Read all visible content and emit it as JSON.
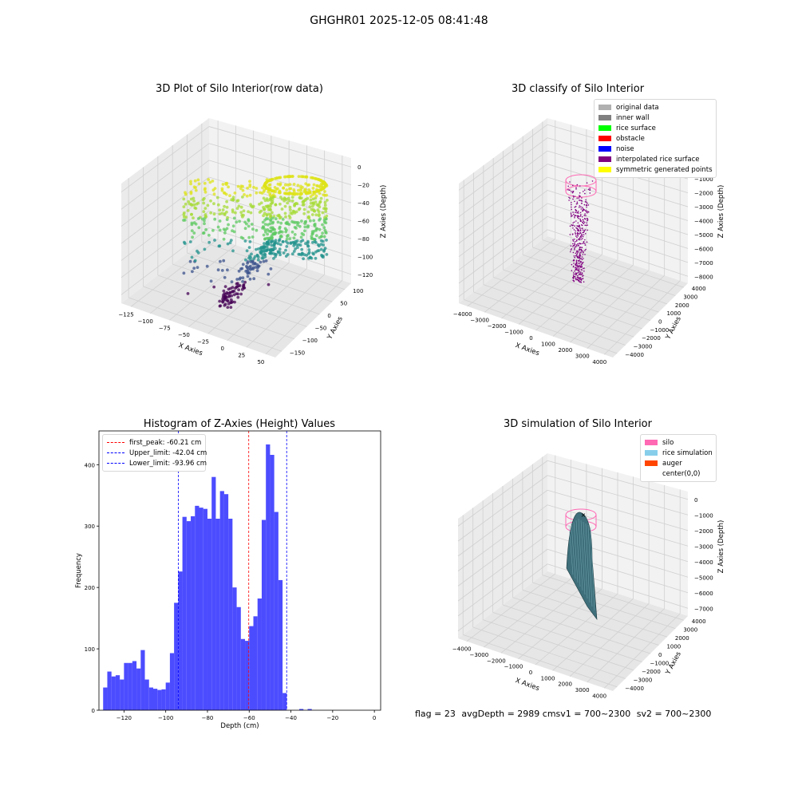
{
  "suptitle": "GHGHR01 2025-12-05 08:41:48",
  "colors": {
    "original": "#b0b0b0",
    "inner_wall": "#808080",
    "rice_surface": "#00ff00",
    "obstacle": "#ff0000",
    "noise": "#0000ff",
    "interpolated": "#800080",
    "symmetric": "#ffff00",
    "silo": "#ff69b4",
    "rice_sim": "#87ceeb",
    "auger": "#ff4500",
    "hist_bar": "#4c4cff"
  },
  "panel1": {
    "title": "3D Plot of Silo Interior(row data)",
    "xlabel": "X Axies",
    "ylabel": "Y Axies",
    "zlabel": "Z Axies (Depth)",
    "xticks": [
      "−125",
      "−100",
      "−75",
      "−50",
      "−25",
      "0",
      "25",
      "50"
    ],
    "yticks": [
      "100",
      "50",
      "0",
      "−50",
      "−100",
      "−150"
    ],
    "zticks": [
      "0",
      "−20",
      "−40",
      "−60",
      "−80",
      "−100",
      "−120"
    ]
  },
  "panel2": {
    "title": "3D classify of Silo Interior",
    "xlabel": "X Axies",
    "ylabel": "Y Axies",
    "zlabel": "Z Axies (Depth)",
    "xticks": [
      "−4000",
      "−3000",
      "−2000",
      "−1000",
      "0",
      "1000",
      "2000",
      "3000",
      "4000"
    ],
    "yticks": [
      "4000",
      "3000",
      "2000",
      "1000",
      "0",
      "−1000",
      "−2000",
      "−3000",
      "−4000"
    ],
    "zticks": [
      "0",
      "−1000",
      "−2000",
      "−3000",
      "−4000",
      "−5000",
      "−6000",
      "−7000",
      "−8000"
    ],
    "legend": [
      "original data",
      "inner wall",
      "rice surface",
      "obstacle",
      "noise",
      "interpolated rice surface",
      "symmetric generated points"
    ]
  },
  "panel3": {
    "title": "Histogram of Z-Axies (Height) Values",
    "xlabel": "Depth (cm)",
    "ylabel": "Frequency",
    "legend": [
      "first_peak: -60.21 cm",
      "Upper_limit: -42.04 cm",
      "Lower_limit: -93.96 cm"
    ],
    "xticks": [
      "−120",
      "−100",
      "−80",
      "−60",
      "−40",
      "−20",
      "0"
    ],
    "yticks": [
      "0",
      "100",
      "200",
      "300",
      "400"
    ]
  },
  "panel4": {
    "title": "3D simulation of Silo Interior",
    "xlabel": "X Axies",
    "ylabel": "Y Axies",
    "zlabel": "Z Axies (Depth)",
    "xticks": [
      "−4000",
      "−3000",
      "−2000",
      "−1000",
      "0",
      "1000",
      "2000",
      "3000",
      "4000"
    ],
    "yticks": [
      "4000",
      "3000",
      "2000",
      "1000",
      "0",
      "−1000",
      "−2000",
      "−3000",
      "−4000"
    ],
    "zticks": [
      "0",
      "−1000",
      "−2000",
      "−3000",
      "−4000",
      "−5000",
      "−6000",
      "−7000"
    ],
    "legend": [
      "silo",
      "rice simulation",
      "auger",
      "center(0,0)"
    ]
  },
  "footer": {
    "flag": "flag = 23",
    "avg": "avgDepth = 2989 cmsv1 = 700~2300",
    "sv2": "sv2 = 700~2300"
  },
  "chart_data": [
    {
      "type": "scatter",
      "title": "3D Plot of Silo Interior(row data)",
      "xlabel": "X Axies",
      "ylabel": "Y Axies",
      "zlabel": "Z Axies (Depth)",
      "xlim": [
        -135,
        60
      ],
      "ylim": [
        -160,
        110
      ],
      "zlim": [
        -135,
        5
      ]
    },
    {
      "type": "scatter",
      "title": "3D classify of Silo Interior",
      "xlabel": "X Axies",
      "ylabel": "Y Axies",
      "zlabel": "Z Axies (Depth)",
      "xlim": [
        -4000,
        4000
      ],
      "ylim": [
        -4000,
        4000
      ],
      "zlim": [
        -8000,
        0
      ],
      "legend": [
        "original data",
        "inner wall",
        "rice surface",
        "obstacle",
        "noise",
        "interpolated rice surface",
        "symmetric generated points"
      ],
      "legend_position": "top-right"
    },
    {
      "type": "bar",
      "title": "Histogram of Z-Axies (Height) Values",
      "xlabel": "Depth (cm)",
      "ylabel": "Frequency",
      "bin_start": -130,
      "bin_width": 2,
      "values": [
        37,
        63,
        55,
        57,
        50,
        77,
        77,
        80,
        68,
        98,
        50,
        37,
        35,
        33,
        34,
        45,
        93,
        175,
        226,
        315,
        308,
        316,
        333,
        330,
        328,
        312,
        380,
        312,
        357,
        352,
        312,
        200,
        168,
        116,
        113,
        137,
        153,
        182,
        310,
        433,
        416,
        323,
        212,
        28,
        0,
        0,
        0,
        2,
        0,
        2,
        0,
        0
      ],
      "xlim": [
        -132,
        3
      ],
      "ylim": [
        0,
        455
      ],
      "vlines": [
        {
          "name": "first_peak",
          "x": -60.21,
          "color": "#ff0000"
        },
        {
          "name": "Upper_limit",
          "x": -42.04,
          "color": "#0000ff"
        },
        {
          "name": "Lower_limit",
          "x": -93.96,
          "color": "#0000ff"
        }
      ],
      "legend_position": "top-left"
    },
    {
      "type": "area",
      "title": "3D simulation of Silo Interior",
      "xlabel": "X Axies",
      "ylabel": "Y Axies",
      "zlabel": "Z Axies (Depth)",
      "xlim": [
        -4000,
        4000
      ],
      "ylim": [
        -4000,
        4000
      ],
      "zlim": [
        -7500,
        500
      ],
      "legend": [
        "silo",
        "rice simulation",
        "auger",
        "center(0,0)"
      ],
      "legend_position": "top-right"
    }
  ]
}
